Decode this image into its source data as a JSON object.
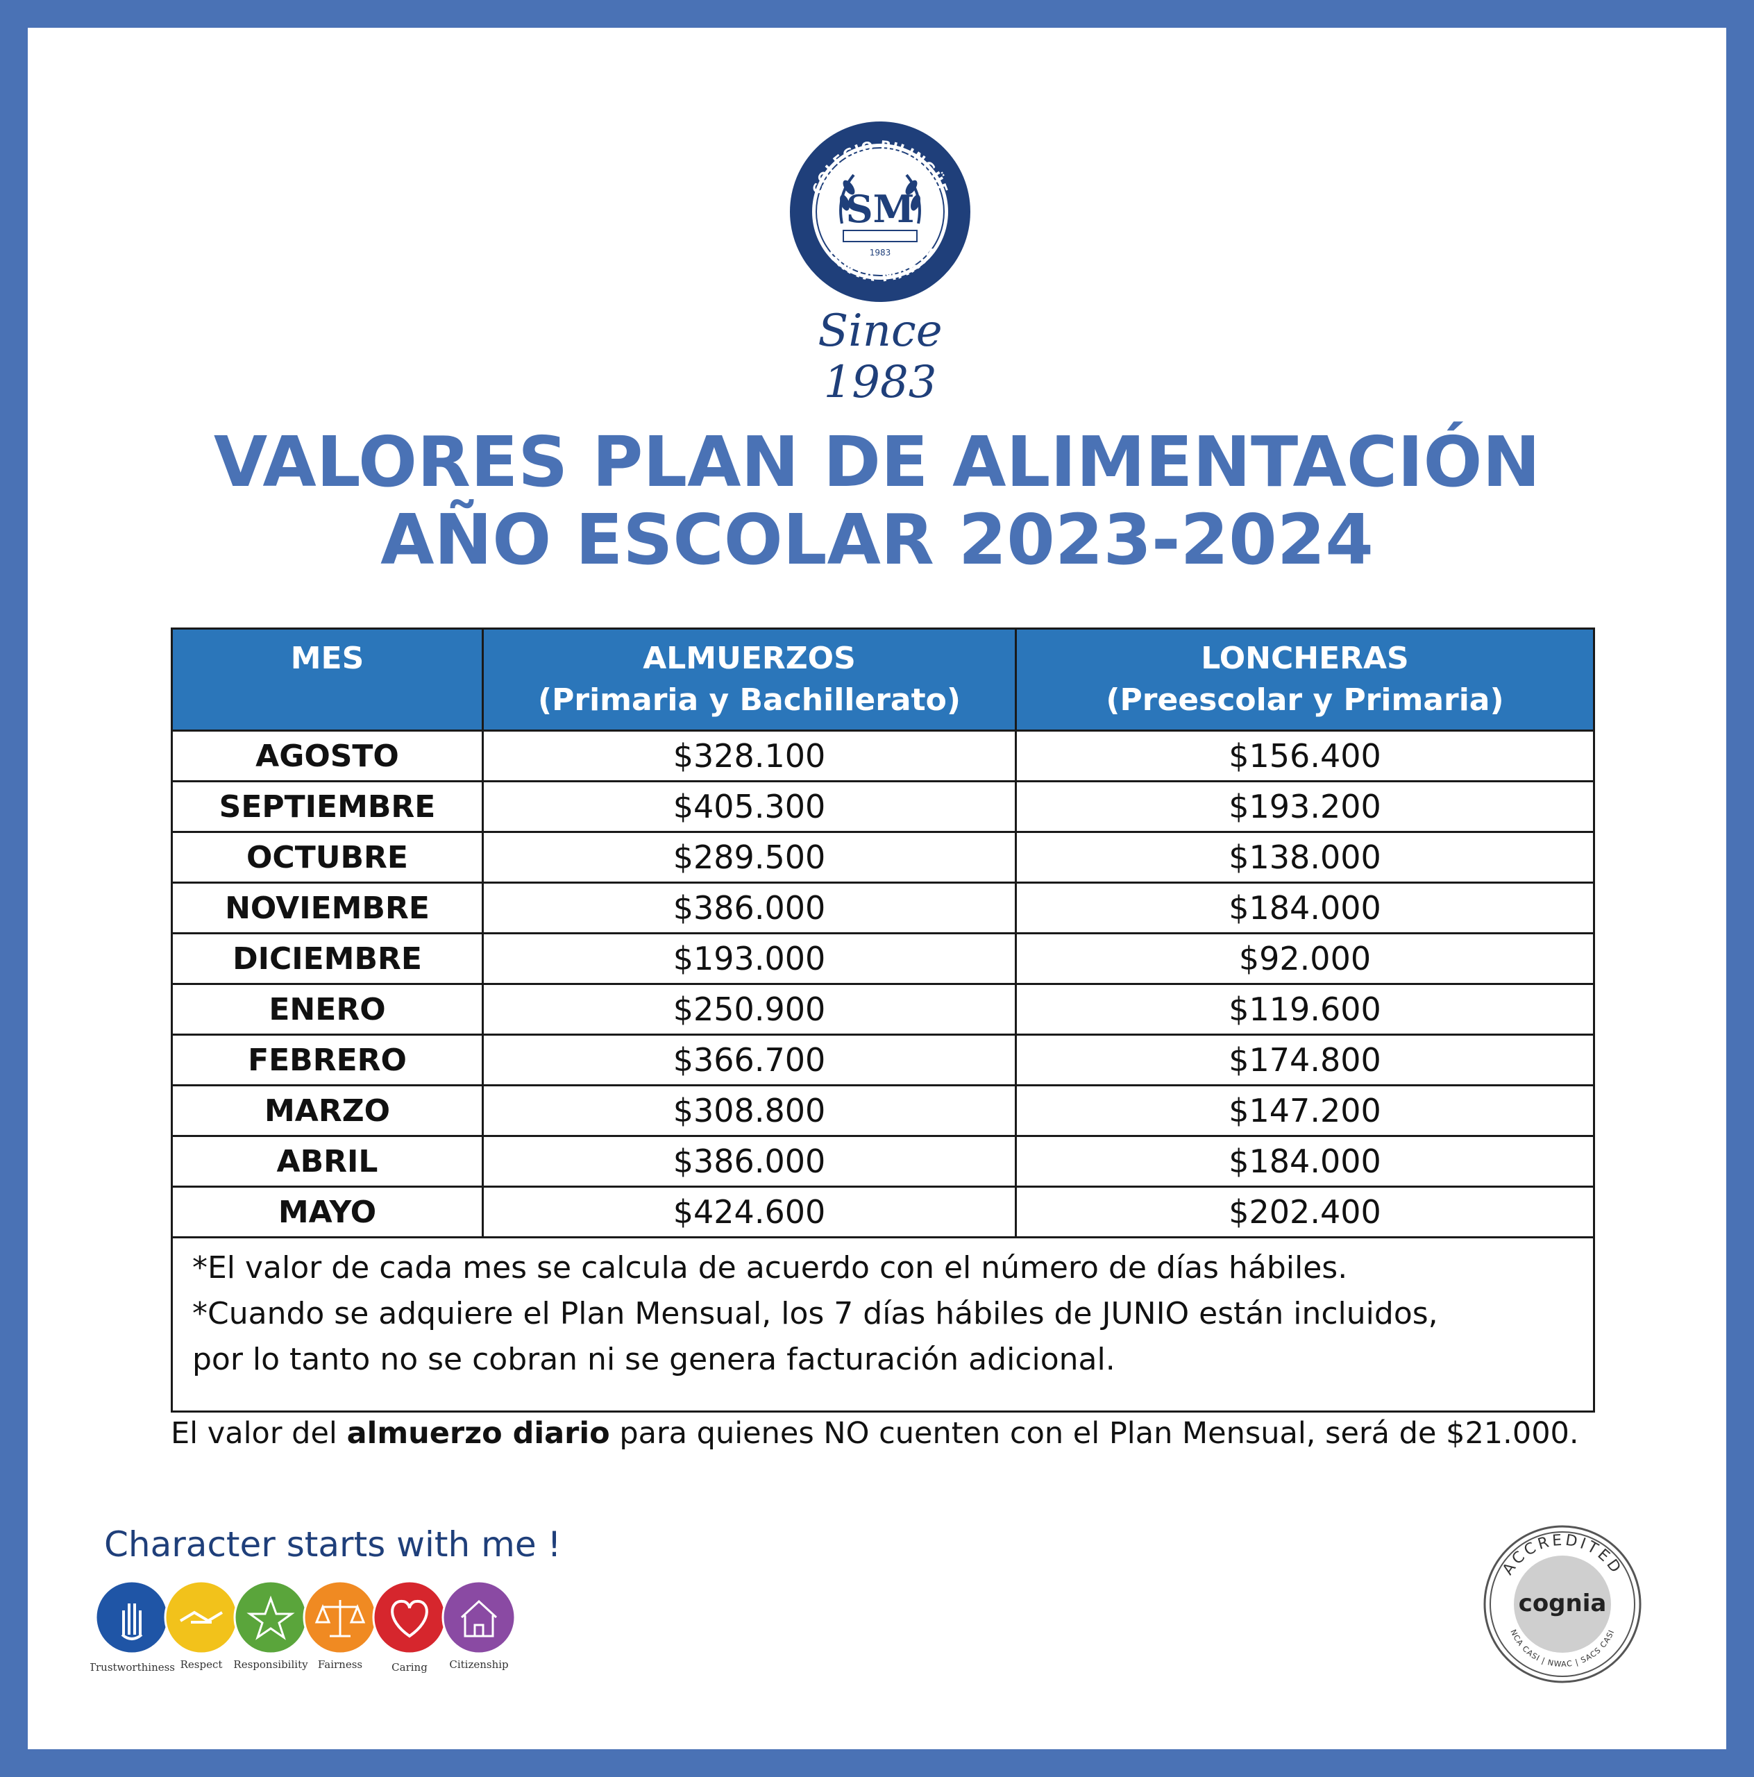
{
  "header": {
    "school_name_top": "COLEGIO BILINGÜE",
    "school_name_bottom": "SANTA MARTA",
    "seal_year": "1983",
    "seal_monogram": "SM",
    "since": "Since 1983"
  },
  "title": {
    "line1": "VALORES PLAN DE ALIMENTACIÓN",
    "line2": "AÑO ESCOLAR 2023-2024"
  },
  "table": {
    "columns": [
      {
        "label": "MES",
        "sublabel": ""
      },
      {
        "label": "ALMUERZOS",
        "sublabel": "(Primaria y Bachillerato)"
      },
      {
        "label": "LONCHERAS",
        "sublabel": "(Preescolar y Primaria)"
      }
    ],
    "rows": [
      {
        "month": "AGOSTO",
        "almuerzos": "$328.100",
        "loncheras": "$156.400"
      },
      {
        "month": "SEPTIEMBRE",
        "almuerzos": "$405.300",
        "loncheras": "$193.200"
      },
      {
        "month": "OCTUBRE",
        "almuerzos": "$289.500",
        "loncheras": "$138.000"
      },
      {
        "month": "NOVIEMBRE",
        "almuerzos": "$386.000",
        "loncheras": "$184.000"
      },
      {
        "month": "DICIEMBRE",
        "almuerzos": "$193.000",
        "loncheras": "$92.000"
      },
      {
        "month": "ENERO",
        "almuerzos": "$250.900",
        "loncheras": "$119.600"
      },
      {
        "month": "FEBRERO",
        "almuerzos": "$366.700",
        "loncheras": "$174.800"
      },
      {
        "month": "MARZO",
        "almuerzos": "$308.800",
        "loncheras": "$147.200"
      },
      {
        "month": "ABRIL",
        "almuerzos": "$386.000",
        "loncheras": "$184.000"
      },
      {
        "month": "MAYO",
        "almuerzos": "$424.600",
        "loncheras": "$202.400"
      }
    ],
    "notes": [
      "*El valor de cada mes se calcula de acuerdo con el número de días hábiles.",
      "*Cuando se adquiere el Plan Mensual, los 7 días hábiles de JUNIO están incluidos,",
      "por lo tanto no se cobran ni se genera facturación adicional."
    ]
  },
  "daily_note": {
    "before": "El valor del ",
    "bold": "almuerzo diario",
    "after": " para quienes NO cuenten con el Plan Mensual, será de $21.000."
  },
  "character": {
    "slogan": "Character starts with me !",
    "values": [
      {
        "label": "Trustworthiness",
        "color": "#1f55a6",
        "icon": "hand-icon"
      },
      {
        "label": "Respect",
        "color": "#f2c21b",
        "icon": "handshake-icon"
      },
      {
        "label": "Responsibility",
        "color": "#5aa53b",
        "icon": "star-icon"
      },
      {
        "label": "Fairness",
        "color": "#f08a22",
        "icon": "scales-icon"
      },
      {
        "label": "Caring",
        "color": "#d6262d",
        "icon": "heart-icon"
      },
      {
        "label": "Citizenship",
        "color": "#8a4aa3",
        "icon": "house-icon"
      }
    ]
  },
  "accreditation": {
    "top": "ACCREDITED",
    "name": "cognia",
    "bottom": "NCA CASI | NWAC | SACS CASI"
  },
  "colors": {
    "frame": "#4a72b5",
    "title": "#4a72b5",
    "table_header": "#2b76ba",
    "navy": "#1f3f7a"
  }
}
